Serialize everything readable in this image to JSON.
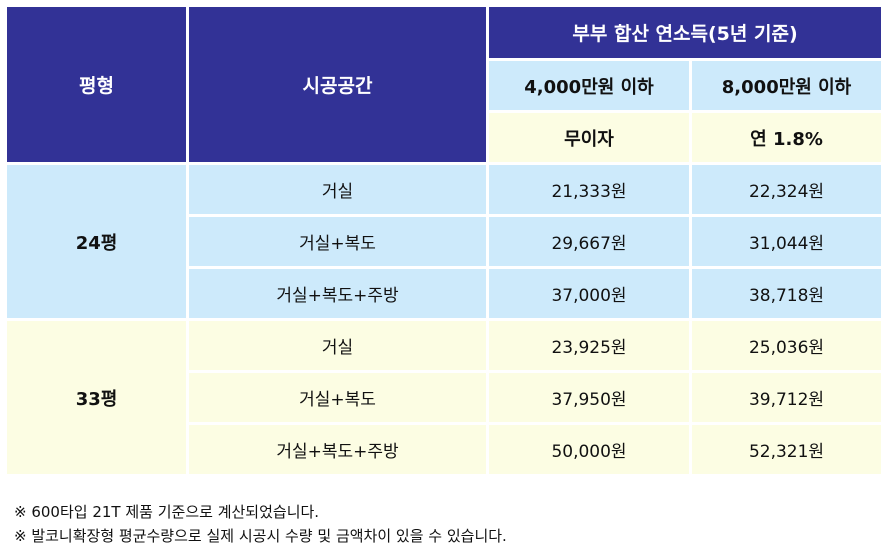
{
  "header": {
    "pyeong": "평형",
    "space": "시공공간",
    "income_group": "부부 합산 연소득(5년 기준)",
    "col1": "4,000만원 이하",
    "col2": "8,000만원 이하",
    "rate1": "무이자",
    "rate2": "연 1.8%"
  },
  "groups": [
    {
      "name": "24평",
      "rows": [
        {
          "space": "거실",
          "v1": "21,333원",
          "v2": "22,324원"
        },
        {
          "space": "거실+복도",
          "v1": "29,667원",
          "v2": "31,044원"
        },
        {
          "space": "거실+복도+주방",
          "v1": "37,000원",
          "v2": "38,718원"
        }
      ]
    },
    {
      "name": "33평",
      "rows": [
        {
          "space": "거실",
          "v1": "23,925원",
          "v2": "25,036원"
        },
        {
          "space": "거실+복도",
          "v1": "37,950원",
          "v2": "39,712원"
        },
        {
          "space": "거실+복도+주방",
          "v1": "50,000원",
          "v2": "52,321원"
        }
      ]
    }
  ],
  "notes": [
    "※ 600타입 21T 제품 기준으로 계산되었습니다.",
    "※ 발코니확장형 평균수량으로 실제 시공시 수량 및 금액차이 있을 수 있습니다."
  ],
  "colors": {
    "header": "#323296",
    "blue": "#cdeafb",
    "yellow": "#fcfde3"
  }
}
